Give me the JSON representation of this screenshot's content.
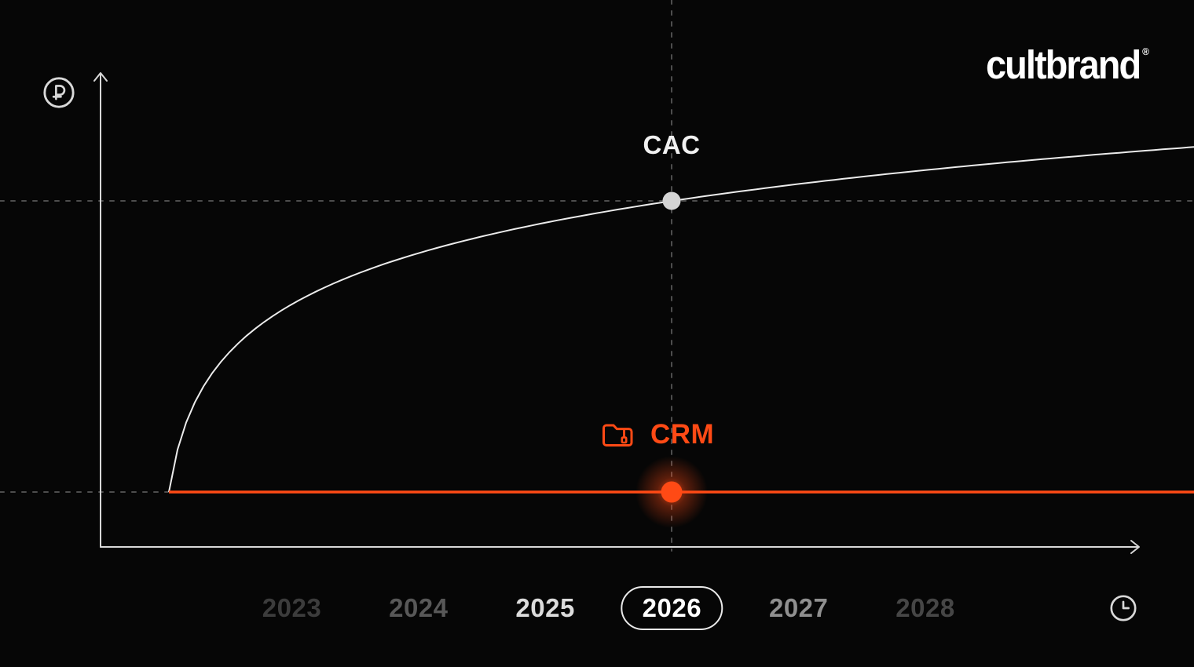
{
  "brand": {
    "logo_text": "cultbrand",
    "registered_mark": "®"
  },
  "colors": {
    "background": "#060606",
    "accent": "#ff4a15",
    "curve": "#ebebeb",
    "axis": "#d8d8d8",
    "dash": "#4d4d4d",
    "cac_dot": "#d4d4d4",
    "pill_border": "#e9e9e9"
  },
  "labels": {
    "cac": "CAC",
    "crm": "CRM",
    "y_axis_unit_icon": "ruble-sign-icon",
    "x_axis_unit_icon": "clock-icon"
  },
  "timeline": {
    "years": [
      {
        "label": "2023",
        "color": "#3c3c3c",
        "selected": false
      },
      {
        "label": "2024",
        "color": "#585858",
        "selected": false
      },
      {
        "label": "2025",
        "color": "#dcdcdc",
        "selected": false
      },
      {
        "label": "2026",
        "color": "#ffffff",
        "selected": true
      },
      {
        "label": "2027",
        "color": "#8f8f8f",
        "selected": false
      },
      {
        "label": "2028",
        "color": "#464646",
        "selected": false
      }
    ],
    "selected_year": "2026"
  },
  "chart_data": {
    "type": "line",
    "title": "",
    "xlabel": "time (years, clock icon)",
    "ylabel": "cost (₽, ruble icon)",
    "x": [
      2022,
      2023,
      2024,
      2025,
      2026,
      2027,
      2028
    ],
    "x_ticks": [
      "2023",
      "2024",
      "2025",
      "2026",
      "2027",
      "2028"
    ],
    "highlighted_x": "2026",
    "y_axis_numeric_labels": "none shown (relative units)",
    "series": [
      {
        "name": "CAC",
        "color": "#ebebeb",
        "shape": "logarithmic growth curve, steep rise then flattening",
        "values": [
          15,
          64,
          78,
          86,
          92,
          96,
          100
        ]
      },
      {
        "name": "CRM",
        "color": "#ff4a15",
        "shape": "flat horizontal line starting 2022",
        "values": [
          15,
          15,
          15,
          15,
          15,
          15,
          15
        ]
      }
    ],
    "annotations": [
      {
        "text": "CAC",
        "position": "above marker dot on CAC curve at 2026"
      },
      {
        "text": "CRM",
        "position": "above glowing marker dot on CRM line at 2026, with folder icon"
      }
    ],
    "guides": [
      "horizontal dashed line through CAC value at 2026",
      "horizontal dashed line at CRM level left of curve start",
      "vertical dashed line at 2026 from top of frame to x-axis"
    ],
    "legend_position": "none (inline labels)"
  }
}
